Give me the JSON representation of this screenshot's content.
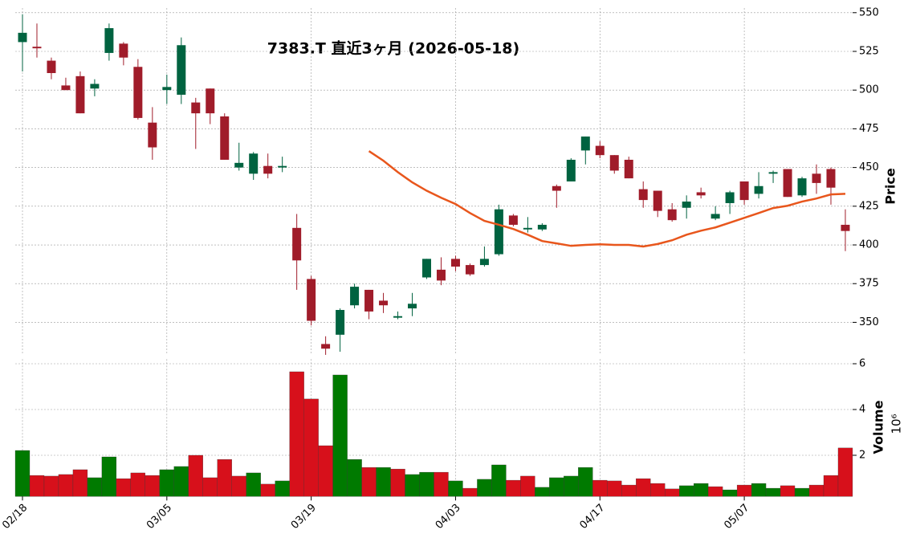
{
  "chart_data": [
    {
      "type": "candlestick",
      "title": "7383.T  直近3ヶ月  (2026-05-18)",
      "ylabel": "Price",
      "open": [
        531,
        528,
        519,
        503,
        509,
        501,
        524,
        530,
        515,
        479,
        500,
        497,
        492,
        501,
        483,
        450,
        446,
        451,
        450,
        411,
        378,
        336,
        342,
        361,
        371,
        364,
        353,
        359,
        379,
        384,
        391,
        387,
        387,
        394,
        419,
        410,
        410,
        438,
        441,
        461,
        464,
        458,
        455,
        436,
        435,
        423,
        424,
        434,
        417,
        427,
        441,
        433,
        446,
        449,
        432,
        446,
        449,
        413
      ],
      "high": [
        549,
        543,
        521,
        508,
        512,
        507,
        543,
        531,
        520,
        489,
        510,
        534,
        495,
        501,
        485,
        466,
        460,
        459,
        457,
        420,
        380,
        341,
        359,
        375,
        371,
        369,
        357,
        369,
        391,
        392,
        393,
        388,
        399,
        426,
        420,
        418,
        414,
        439,
        456,
        470,
        467,
        458,
        457,
        441,
        435,
        427,
        432,
        437,
        425,
        435,
        441,
        447,
        448,
        449,
        444,
        452,
        450,
        423
      ],
      "low": [
        512,
        521,
        507,
        500,
        485,
        496,
        519,
        516,
        481,
        455,
        491,
        491,
        462,
        478,
        455,
        448,
        442,
        443,
        447,
        371,
        348,
        329,
        331,
        359,
        352,
        356,
        352,
        354,
        378,
        374,
        383,
        380,
        386,
        393,
        412,
        408,
        409,
        424,
        441,
        452,
        456,
        446,
        443,
        424,
        418,
        415,
        417,
        430,
        416,
        420,
        426,
        430,
        440,
        431,
        431,
        433,
        426,
        396
      ],
      "close": [
        537,
        527,
        511,
        500,
        485,
        504,
        540,
        521,
        482,
        463,
        502,
        529,
        485,
        485,
        455,
        453,
        459,
        446,
        451,
        390,
        351,
        333,
        358,
        373,
        357,
        361,
        354,
        362,
        391,
        377,
        386,
        381,
        391,
        423,
        413,
        411,
        413,
        435,
        455,
        470,
        458,
        448,
        443,
        429,
        422,
        416,
        428,
        432,
        420,
        434,
        429,
        438,
        447,
        431,
        443,
        440,
        437,
        409
      ],
      "up_color": "#006340",
      "down_color": "#a01c2a",
      "ma_values": [
        null,
        null,
        null,
        null,
        null,
        null,
        null,
        null,
        null,
        null,
        null,
        null,
        null,
        null,
        null,
        null,
        null,
        null,
        null,
        null,
        null,
        null,
        null,
        null,
        460.6,
        454.4,
        447,
        440.4,
        435,
        430.5,
        426.4,
        420.6,
        415.5,
        413,
        410.3,
        406.6,
        402.5,
        401,
        399.4,
        400,
        400.4,
        400,
        400,
        399,
        400.6,
        403,
        406.6,
        409.2,
        411.3,
        414.4,
        417.5,
        420.6,
        423.8,
        425.3,
        428,
        430,
        432.6,
        433
      ],
      "ma_color": "#e8561c",
      "ylim": [
        330,
        553
      ],
      "yticks": [
        350,
        375,
        400,
        425,
        450,
        475,
        500,
        525,
        550
      ],
      "grid": true
    },
    {
      "type": "bar",
      "ylabel": "Volume",
      "multiplier": "10⁶",
      "categories": [
        "02/18",
        null,
        null,
        null,
        null,
        null,
        null,
        null,
        null,
        null,
        "03/05",
        null,
        null,
        null,
        null,
        null,
        null,
        null,
        null,
        null,
        "03/19",
        null,
        null,
        null,
        null,
        null,
        null,
        null,
        null,
        null,
        "04/03",
        null,
        null,
        null,
        null,
        null,
        null,
        null,
        null,
        null,
        "04/17",
        null,
        null,
        null,
        null,
        null,
        null,
        null,
        null,
        null,
        "05/07",
        null,
        null,
        null,
        null,
        null,
        null,
        null
      ],
      "values": [
        2.21,
        1.12,
        1.09,
        1.16,
        1.37,
        1.02,
        1.93,
        0.98,
        1.23,
        1.12,
        1.37,
        1.51,
        2.0,
        1.02,
        1.82,
        1.09,
        1.23,
        0.74,
        0.88,
        5.65,
        4.46,
        2.42,
        5.51,
        1.82,
        1.47,
        1.47,
        1.4,
        1.16,
        1.26,
        1.26,
        0.88,
        0.56,
        0.95,
        1.58,
        0.91,
        1.09,
        0.6,
        1.02,
        1.09,
        1.47,
        0.91,
        0.88,
        0.7,
        0.98,
        0.77,
        0.53,
        0.67,
        0.77,
        0.63,
        0.49,
        0.7,
        0.77,
        0.56,
        0.67,
        0.56,
        0.7,
        1.12,
        2.32
      ],
      "colors": [
        "#007a00",
        "#d7101b",
        "#d7101b",
        "#d7101b",
        "#d7101b",
        "#007a00",
        "#007a00",
        "#d7101b",
        "#d7101b",
        "#d7101b",
        "#007a00",
        "#007a00",
        "#d7101b",
        "#d7101b",
        "#d7101b",
        "#d7101b",
        "#007a00",
        "#d7101b",
        "#007a00",
        "#d7101b",
        "#d7101b",
        "#d7101b",
        "#007a00",
        "#007a00",
        "#d7101b",
        "#007a00",
        "#d7101b",
        "#007a00",
        "#007a00",
        "#d7101b",
        "#007a00",
        "#d7101b",
        "#007a00",
        "#007a00",
        "#d7101b",
        "#d7101b",
        "#007a00",
        "#007a00",
        "#007a00",
        "#007a00",
        "#d7101b",
        "#d7101b",
        "#d7101b",
        "#d7101b",
        "#d7101b",
        "#d7101b",
        "#007a00",
        "#007a00",
        "#d7101b",
        "#007a00",
        "#d7101b",
        "#007a00",
        "#007a00",
        "#d7101b",
        "#007a00",
        "#d7101b",
        "#d7101b",
        "#d7101b"
      ],
      "ylim": [
        0.2,
        6.2
      ],
      "yticks": [
        2,
        4,
        6
      ],
      "grid": true
    }
  ]
}
